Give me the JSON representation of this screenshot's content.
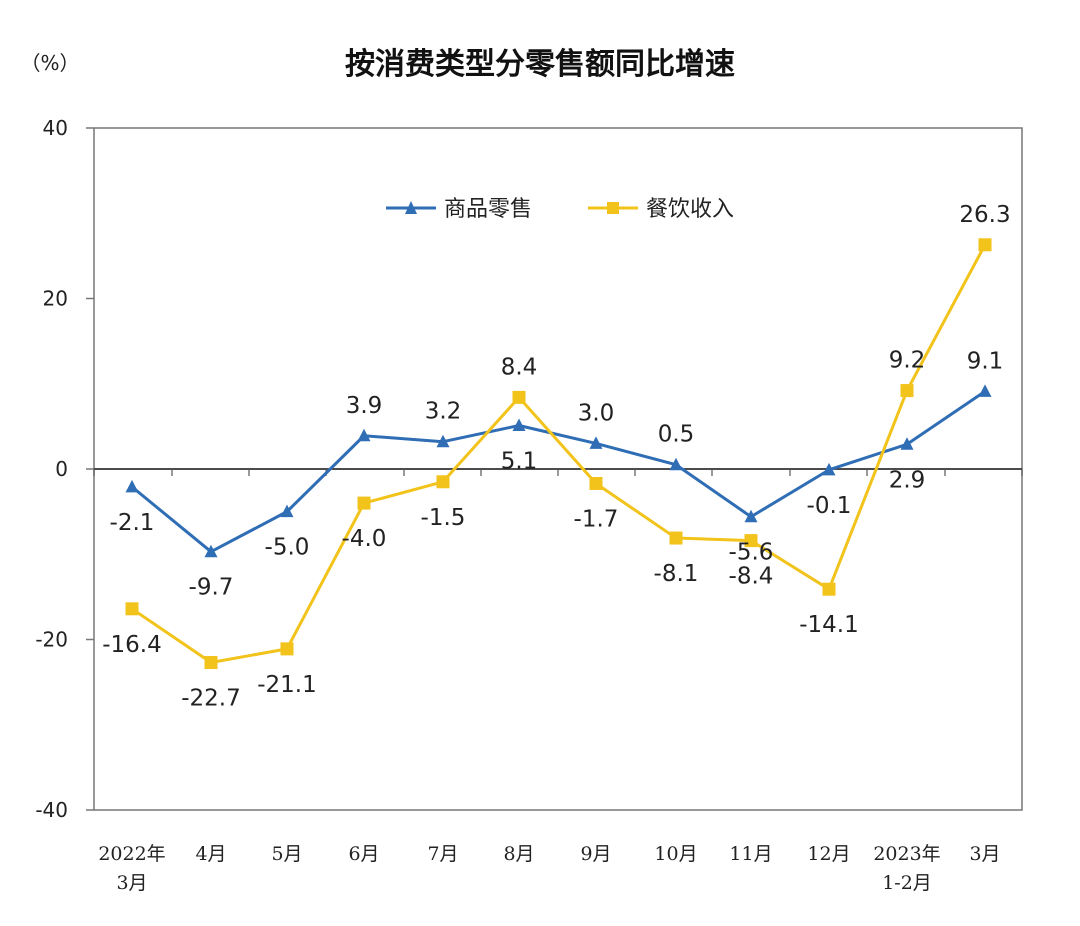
{
  "colors": {
    "goods": "#2f6db5",
    "catering": "#f2c31b",
    "axis": "#555555",
    "zero_line": "#333333"
  },
  "chart_data": {
    "type": "line",
    "title": "按消费类型分零售额同比增速",
    "ylabel": "（%）",
    "ylim": [
      -40,
      40
    ],
    "yticks": [
      -40,
      -20,
      0,
      20,
      40
    ],
    "categories": [
      [
        "2022年",
        "3月"
      ],
      [
        "4月"
      ],
      [
        "5月"
      ],
      [
        "6月"
      ],
      [
        "7月"
      ],
      [
        "8月"
      ],
      [
        "9月"
      ],
      [
        "10月"
      ],
      [
        "11月"
      ],
      [
        "12月"
      ],
      [
        "2023年",
        "1-2月"
      ],
      [
        "3月"
      ]
    ],
    "series": [
      {
        "name": "商品零售",
        "color": "#2f6db5",
        "marker": "triangle",
        "values": [
          -2.1,
          -9.7,
          -5.0,
          3.9,
          3.2,
          5.1,
          3.0,
          0.5,
          -5.6,
          -0.1,
          2.9,
          9.1
        ],
        "labels": [
          "-2.1",
          "-9.7",
          "-5.0",
          "3.9",
          "3.2",
          "5.1",
          "3.0",
          "0.5",
          "-5.6",
          "-0.1",
          "2.9",
          "9.1"
        ],
        "label_pos": [
          "below",
          "below",
          "below",
          "above",
          "above",
          "below",
          "above",
          "above",
          "below",
          "below",
          "below",
          "above"
        ]
      },
      {
        "name": "餐饮收入",
        "color": "#f2c31b",
        "marker": "square",
        "values": [
          -16.4,
          -22.7,
          -21.1,
          -4.0,
          -1.5,
          8.4,
          -1.7,
          -8.1,
          -8.4,
          -14.1,
          9.2,
          26.3
        ],
        "labels": [
          "-16.4",
          "-22.7",
          "-21.1",
          "-4.0",
          "-1.5",
          "8.4",
          "-1.7",
          "-8.1",
          "-8.4",
          "-14.1",
          "9.2",
          "26.3"
        ],
        "label_pos": [
          "below",
          "below",
          "below",
          "below",
          "below",
          "above",
          "below",
          "below",
          "below",
          "below",
          "above",
          "above"
        ]
      }
    ],
    "legend": [
      "商品零售",
      "餐饮收入"
    ],
    "legend_position": "top-right"
  }
}
